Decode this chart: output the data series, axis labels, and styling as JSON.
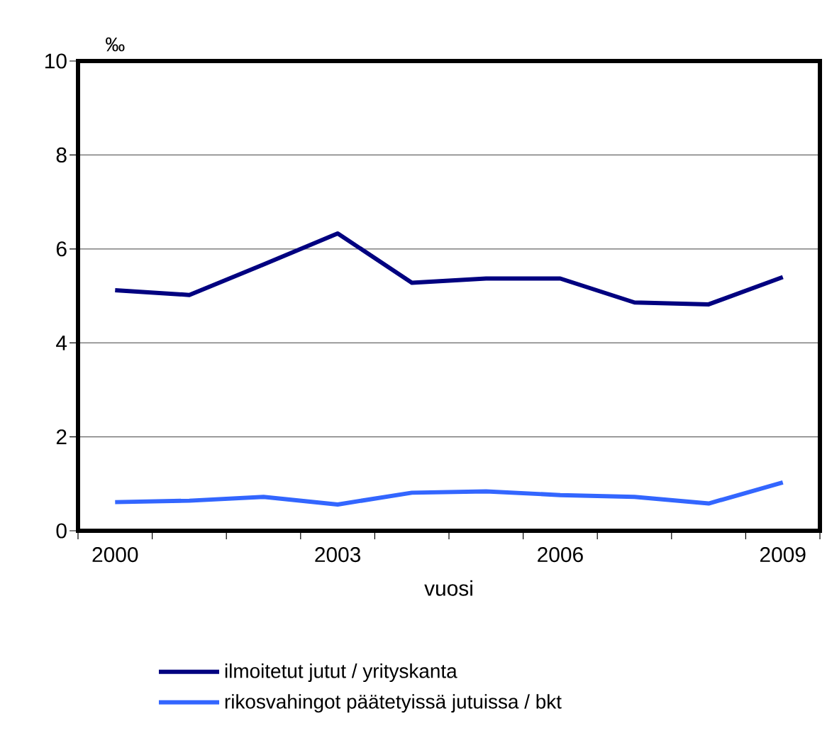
{
  "chart_data": {
    "type": "line",
    "xlabel": "vuosi",
    "ylabel": "‰",
    "categories": [
      "2000",
      null,
      null,
      "2003",
      null,
      null,
      "2006",
      null,
      null,
      "2009"
    ],
    "series": [
      {
        "name": "ilmoitetut jutut / yrityskanta",
        "color": "#000080",
        "values": [
          5.12,
          5.02,
          5.67,
          6.33,
          5.28,
          5.37,
          5.37,
          4.86,
          4.82,
          5.4
        ]
      },
      {
        "name": "rikosvahingot päätetyissä jutuissa / bkt",
        "color": "#3366ff",
        "values": [
          0.61,
          0.64,
          0.72,
          0.56,
          0.81,
          0.84,
          0.76,
          0.72,
          0.58,
          1.03
        ]
      }
    ],
    "ylim": [
      0,
      10
    ],
    "yticks": [
      0,
      2,
      4,
      6,
      8,
      10
    ],
    "grid": "y",
    "legend": "bottom",
    "line_style": "solid"
  }
}
